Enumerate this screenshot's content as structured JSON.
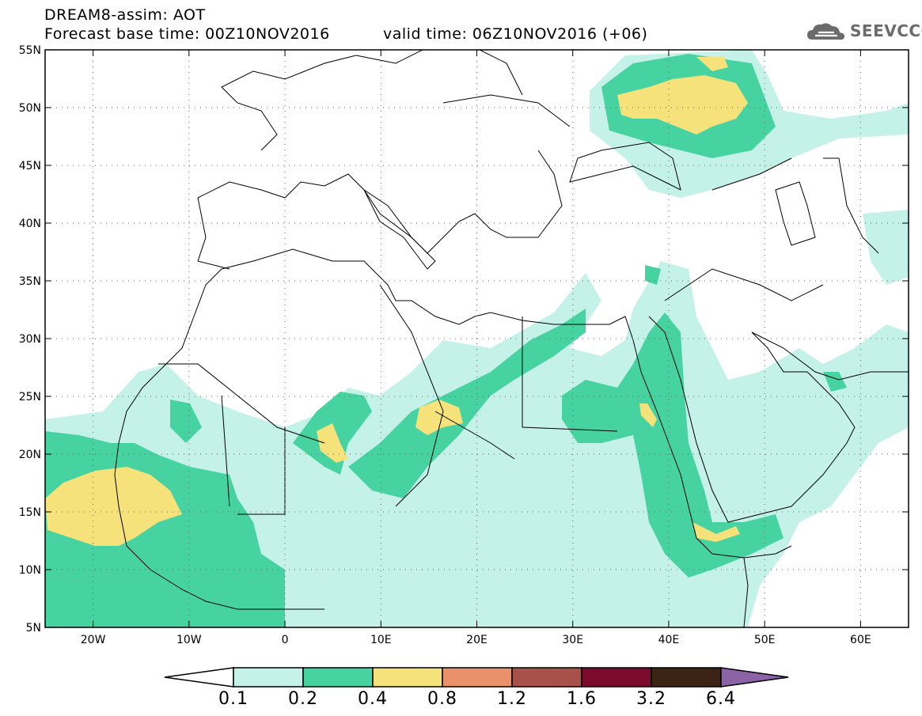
{
  "header": {
    "line1": "DREAM8-assim: AOT",
    "line2": "Forecast base time: 00Z10NOV2016",
    "line3": "valid time: 06Z10NOV2016 (+06)"
  },
  "logo": {
    "text": "SEEVCCC",
    "icon": "cloud-icon"
  },
  "map": {
    "lon_range": [
      -25,
      65
    ],
    "lat_range": [
      5,
      55
    ],
    "lat_labels": [
      "55N",
      "50N",
      "45N",
      "40N",
      "35N",
      "30N",
      "25N",
      "20N",
      "15N",
      "10N",
      "5N"
    ],
    "lon_labels": [
      "20W",
      "10W",
      "0",
      "10E",
      "20E",
      "30E",
      "40E",
      "50E",
      "60E"
    ],
    "grid": "dotted"
  },
  "colorbar": {
    "labels": [
      "0.1",
      "0.2",
      "0.4",
      "0.8",
      "1.2",
      "1.6",
      "3.2",
      "6.4"
    ],
    "colors": [
      "#c4f1e8",
      "#47d3a1",
      "#f6e27a",
      "#e8916a",
      "#a8504a",
      "#7a0a2e",
      "#3c2414"
    ],
    "under_color": "#ffffff",
    "over_color": "#8c63a6"
  },
  "palette": {
    "aot_0_1": "#c4f1e8",
    "aot_0_2": "#47d3a1",
    "aot_0_4": "#f6e27a"
  }
}
